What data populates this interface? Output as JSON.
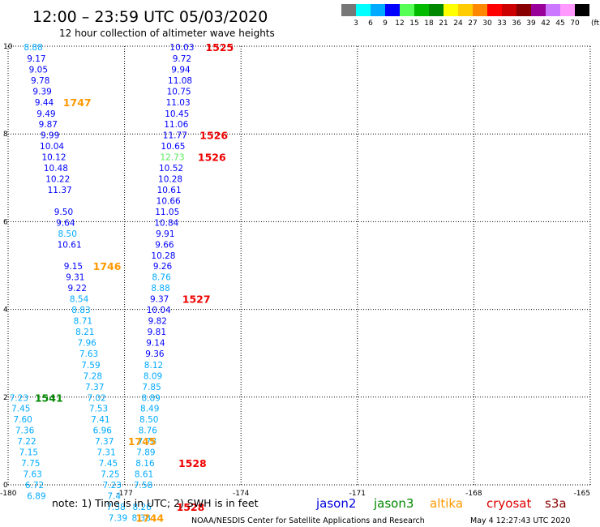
{
  "header": {
    "title": "12:00 – 23:59 UTC 05/03/2020",
    "subtitle": "12 hour collection of altimeter wave heights"
  },
  "colorbar": {
    "labels": [
      "3",
      "6",
      "9",
      "12",
      "15",
      "18",
      "21",
      "24",
      "27",
      "30",
      "33",
      "36",
      "39",
      "42",
      "45",
      "70"
    ],
    "unit": "(ft)",
    "colors": [
      "#777777",
      "#00ffff",
      "#00aaff",
      "#0000ff",
      "#55ff55",
      "#00bb00",
      "#008800",
      "#ffff00",
      "#ffcc00",
      "#ff8800",
      "#ff0000",
      "#cc0000",
      "#880000",
      "#990099",
      "#cc77ff",
      "#ff99ff",
      "#000000"
    ]
  },
  "legend": {
    "items": [
      {
        "name": "jason2",
        "color": "#0000dd"
      },
      {
        "name": "jason3",
        "color": "#008800"
      },
      {
        "name": "altika",
        "color": "#ff9900"
      },
      {
        "name": "cryosat",
        "color": "#dd0000"
      },
      {
        "name": "s3a",
        "color": "#880000"
      }
    ]
  },
  "note": "note:  1) Time is in UTC;  2) SWH is in feet",
  "credit": "NOAA/NESDIS Center for Satellite Applications and Research",
  "timestamp": "May  4 12:27:43 UTC 2020",
  "chart_data": {
    "type": "scatter",
    "xlim": [
      -180,
      -165
    ],
    "ylim": [
      0,
      10
    ],
    "xticks": [
      "-180",
      "-177",
      "-174",
      "-171",
      "-168",
      "-165"
    ],
    "yticks": [
      "0",
      "2",
      "4",
      "6",
      "8",
      "10"
    ],
    "grid": true,
    "series": [
      {
        "name": "track-left",
        "color_scale": true,
        "points": [
          {
            "x": -179.35,
            "y": 9.98,
            "v": "8.88",
            "c": "#00aaff"
          },
          {
            "x": -179.27,
            "y": 9.72,
            "v": "9.17",
            "c": "#0000ff"
          },
          {
            "x": -179.22,
            "y": 9.47,
            "v": "9.05",
            "c": "#0000ff"
          },
          {
            "x": -179.17,
            "y": 9.22,
            "v": "9.78",
            "c": "#0000ff"
          },
          {
            "x": -179.12,
            "y": 8.97,
            "v": "9.39",
            "c": "#0000ff"
          },
          {
            "x": -179.07,
            "y": 8.72,
            "v": "9.44",
            "c": "#0000ff"
          },
          {
            "x": -179.02,
            "y": 8.47,
            "v": "9.49",
            "c": "#0000ff"
          },
          {
            "x": -178.97,
            "y": 8.23,
            "v": "9.87",
            "c": "#0000ff"
          },
          {
            "x": -178.92,
            "y": 7.98,
            "v": "9.99",
            "c": "#0000ff"
          },
          {
            "x": -178.87,
            "y": 7.73,
            "v": "10.04",
            "c": "#0000ff"
          },
          {
            "x": -178.82,
            "y": 7.48,
            "v": "10.12",
            "c": "#0000ff"
          },
          {
            "x": -178.77,
            "y": 7.23,
            "v": "10.48",
            "c": "#0000ff"
          },
          {
            "x": -178.72,
            "y": 6.98,
            "v": "10.22",
            "c": "#0000ff"
          },
          {
            "x": -178.67,
            "y": 6.73,
            "v": "11.37",
            "c": "#0000ff"
          },
          {
            "x": -178.57,
            "y": 6.23,
            "v": "9.50",
            "c": "#0000ff"
          },
          {
            "x": -178.52,
            "y": 5.98,
            "v": "9.64",
            "c": "#0000ff"
          },
          {
            "x": -178.47,
            "y": 5.73,
            "v": "8.50",
            "c": "#00aaff"
          },
          {
            "x": -178.42,
            "y": 5.48,
            "v": "10.61",
            "c": "#0000ff"
          },
          {
            "x": -178.32,
            "y": 4.99,
            "v": "9.15",
            "c": "#0000ff"
          },
          {
            "x": -178.27,
            "y": 4.74,
            "v": "9.31",
            "c": "#0000ff"
          },
          {
            "x": -178.22,
            "y": 4.49,
            "v": "9.22",
            "c": "#0000ff"
          },
          {
            "x": -178.17,
            "y": 4.24,
            "v": "8.54",
            "c": "#00aaff"
          },
          {
            "x": -178.12,
            "y": 3.99,
            "v": "8.83",
            "c": "#00aaff"
          },
          {
            "x": -178.07,
            "y": 3.74,
            "v": "8.71",
            "c": "#00aaff"
          },
          {
            "x": -178.02,
            "y": 3.49,
            "v": "8.21",
            "c": "#00aaff"
          },
          {
            "x": -177.97,
            "y": 3.24,
            "v": "7.96",
            "c": "#00aaff"
          },
          {
            "x": -177.92,
            "y": 2.99,
            "v": "7.63",
            "c": "#00aaff"
          },
          {
            "x": -177.87,
            "y": 2.74,
            "v": "7.59",
            "c": "#00aaff"
          },
          {
            "x": -177.82,
            "y": 2.49,
            "v": "7.28",
            "c": "#00aaff"
          },
          {
            "x": -177.77,
            "y": 2.24,
            "v": "7.37",
            "c": "#00aaff"
          },
          {
            "x": -177.72,
            "y": 1.99,
            "v": "7.02",
            "c": "#00aaff"
          },
          {
            "x": -177.67,
            "y": 1.75,
            "v": "7.53",
            "c": "#00aaff"
          },
          {
            "x": -177.62,
            "y": 1.5,
            "v": "7.41",
            "c": "#00aaff"
          },
          {
            "x": -177.57,
            "y": 1.25,
            "v": "6.96",
            "c": "#00aaff"
          },
          {
            "x": -177.52,
            "y": 1.0,
            "v": "7.37",
            "c": "#00aaff"
          },
          {
            "x": -177.47,
            "y": 0.75,
            "v": "7.31",
            "c": "#00aaff"
          },
          {
            "x": -177.42,
            "y": 0.5,
            "v": "7.45",
            "c": "#00aaff"
          },
          {
            "x": -177.37,
            "y": 0.25,
            "v": "7.25",
            "c": "#00aaff"
          },
          {
            "x": -177.32,
            "y": 0.0,
            "v": "7.23",
            "c": "#00aaff"
          },
          {
            "x": -177.27,
            "y": -0.25,
            "v": "7.4",
            "c": "#00aaff"
          },
          {
            "x": -177.22,
            "y": -0.5,
            "v": "7.38",
            "c": "#00aaff"
          },
          {
            "x": -177.17,
            "y": -0.75,
            "v": "7.39",
            "c": "#00aaff"
          }
        ]
      },
      {
        "name": "track-bottom-left",
        "color_scale": true,
        "points": [
          {
            "x": -179.72,
            "y": 1.99,
            "v": "7.23",
            "c": "#00aaff"
          },
          {
            "x": -179.67,
            "y": 1.75,
            "v": "7.45",
            "c": "#00aaff"
          },
          {
            "x": -179.62,
            "y": 1.5,
            "v": "7.60",
            "c": "#00aaff"
          },
          {
            "x": -179.57,
            "y": 1.25,
            "v": "7.36",
            "c": "#00aaff"
          },
          {
            "x": -179.52,
            "y": 1.0,
            "v": "7.22",
            "c": "#00aaff"
          },
          {
            "x": -179.47,
            "y": 0.75,
            "v": "7.15",
            "c": "#00aaff"
          },
          {
            "x": -179.42,
            "y": 0.5,
            "v": "7.75",
            "c": "#00aaff"
          },
          {
            "x": -179.37,
            "y": 0.25,
            "v": "7.63",
            "c": "#00aaff"
          },
          {
            "x": -179.32,
            "y": 0.0,
            "v": "6.72",
            "c": "#00aaff"
          },
          {
            "x": -179.27,
            "y": -0.25,
            "v": "6.89",
            "c": "#00aaff"
          }
        ]
      },
      {
        "name": "track-right",
        "color_scale": true,
        "points": [
          {
            "x": -175.52,
            "y": 9.98,
            "v": "10.03",
            "c": "#0000ff"
          },
          {
            "x": -175.52,
            "y": 9.72,
            "v": "9.72",
            "c": "#0000ff"
          },
          {
            "x": -175.55,
            "y": 9.47,
            "v": "9.94",
            "c": "#0000ff"
          },
          {
            "x": -175.57,
            "y": 9.22,
            "v": "11.08",
            "c": "#0000ff"
          },
          {
            "x": -175.6,
            "y": 8.97,
            "v": "10.75",
            "c": "#0000ff"
          },
          {
            "x": -175.62,
            "y": 8.72,
            "v": "11.03",
            "c": "#0000ff"
          },
          {
            "x": -175.65,
            "y": 8.47,
            "v": "10.45",
            "c": "#0000ff"
          },
          {
            "x": -175.67,
            "y": 8.23,
            "v": "11.06",
            "c": "#0000ff"
          },
          {
            "x": -175.7,
            "y": 7.98,
            "v": "11.77",
            "c": "#0000ff"
          },
          {
            "x": -175.75,
            "y": 7.73,
            "v": "10.65",
            "c": "#0000ff"
          },
          {
            "x": -175.77,
            "y": 7.48,
            "v": "12.73",
            "c": "#55ee55"
          },
          {
            "x": -175.8,
            "y": 7.23,
            "v": "10.52",
            "c": "#0000ff"
          },
          {
            "x": -175.82,
            "y": 6.98,
            "v": "10.28",
            "c": "#0000ff"
          },
          {
            "x": -175.85,
            "y": 6.73,
            "v": "10.61",
            "c": "#0000ff"
          },
          {
            "x": -175.87,
            "y": 6.48,
            "v": "10.66",
            "c": "#0000ff"
          },
          {
            "x": -175.9,
            "y": 6.23,
            "v": "11.05",
            "c": "#0000ff"
          },
          {
            "x": -175.92,
            "y": 5.98,
            "v": "10.84",
            "c": "#0000ff"
          },
          {
            "x": -175.95,
            "y": 5.73,
            "v": "9.91",
            "c": "#0000ff"
          },
          {
            "x": -175.97,
            "y": 5.48,
            "v": "9.66",
            "c": "#0000ff"
          },
          {
            "x": -176.0,
            "y": 5.23,
            "v": "10.28",
            "c": "#0000ff"
          },
          {
            "x": -176.02,
            "y": 4.99,
            "v": "9.26",
            "c": "#0000ff"
          },
          {
            "x": -176.05,
            "y": 4.74,
            "v": "8.76",
            "c": "#00aaff"
          },
          {
            "x": -176.07,
            "y": 4.49,
            "v": "8.88",
            "c": "#00aaff"
          },
          {
            "x": -176.1,
            "y": 4.24,
            "v": "9.37",
            "c": "#0000ff"
          },
          {
            "x": -176.12,
            "y": 3.99,
            "v": "10.04",
            "c": "#0000ff"
          },
          {
            "x": -176.15,
            "y": 3.74,
            "v": "9.82",
            "c": "#0000ff"
          },
          {
            "x": -176.17,
            "y": 3.49,
            "v": "9.81",
            "c": "#0000ff"
          },
          {
            "x": -176.2,
            "y": 3.24,
            "v": "9.14",
            "c": "#0000ff"
          },
          {
            "x": -176.22,
            "y": 2.99,
            "v": "9.36",
            "c": "#0000ff"
          },
          {
            "x": -176.25,
            "y": 2.74,
            "v": "8.12",
            "c": "#00aaff"
          },
          {
            "x": -176.27,
            "y": 2.49,
            "v": "8.09",
            "c": "#00aaff"
          },
          {
            "x": -176.3,
            "y": 2.24,
            "v": "7.85",
            "c": "#00aaff"
          },
          {
            "x": -176.32,
            "y": 1.99,
            "v": "8.89",
            "c": "#00aaff"
          },
          {
            "x": -176.35,
            "y": 1.75,
            "v": "8.49",
            "c": "#00aaff"
          },
          {
            "x": -176.37,
            "y": 1.5,
            "v": "8.50",
            "c": "#00aaff"
          },
          {
            "x": -176.4,
            "y": 1.25,
            "v": "8.76",
            "c": "#00aaff"
          },
          {
            "x": -176.42,
            "y": 1.0,
            "v": "7.78",
            "c": "#00aaff"
          },
          {
            "x": -176.45,
            "y": 0.75,
            "v": "7.89",
            "c": "#00aaff"
          },
          {
            "x": -176.47,
            "y": 0.5,
            "v": "8.16",
            "c": "#00aaff"
          },
          {
            "x": -176.5,
            "y": 0.25,
            "v": "8.61",
            "c": "#00aaff"
          },
          {
            "x": -176.52,
            "y": 0.0,
            "v": "7.58",
            "c": "#00aaff"
          },
          {
            "x": -176.55,
            "y": -0.5,
            "v": "8.26",
            "c": "#00aaff"
          },
          {
            "x": -176.57,
            "y": -0.75,
            "v": "8.38",
            "c": "#00aaff"
          }
        ]
      }
    ],
    "time_labels": [
      {
        "x": -174.55,
        "y": 9.98,
        "text": "1525",
        "color": "#ee0000"
      },
      {
        "x": -178.22,
        "y": 8.72,
        "text": "1747",
        "color": "#ff9900"
      },
      {
        "x": -174.7,
        "y": 7.98,
        "text": "1526",
        "color": "#ee0000"
      },
      {
        "x": -174.75,
        "y": 7.48,
        "text": "1526",
        "color": "#ee0000"
      },
      {
        "x": -177.45,
        "y": 4.99,
        "text": "1746",
        "color": "#ff9900"
      },
      {
        "x": -175.15,
        "y": 4.24,
        "text": "1527",
        "color": "#ee0000"
      },
      {
        "x": -178.95,
        "y": 1.99,
        "text": "1541",
        "color": "#008800"
      },
      {
        "x": -176.55,
        "y": 1.0,
        "text": "1745",
        "color": "#ff9900"
      },
      {
        "x": -175.25,
        "y": 0.5,
        "text": "1528",
        "color": "#ee0000"
      },
      {
        "x": -175.3,
        "y": -0.5,
        "text": "1528",
        "color": "#ee0000"
      },
      {
        "x": -176.35,
        "y": -0.75,
        "text": "1744",
        "color": "#ff9900"
      }
    ]
  }
}
